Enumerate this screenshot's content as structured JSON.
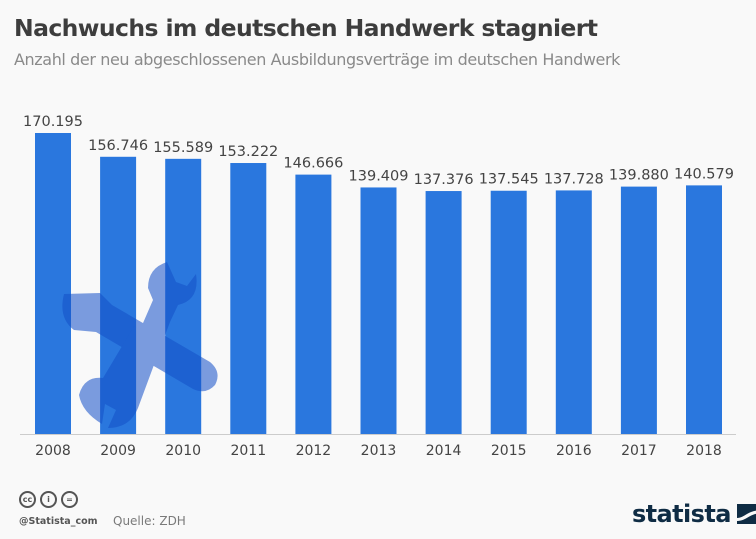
{
  "header": {
    "title": "Nachwuchs im deutschen Handwerk stagniert",
    "subtitle": "Anzahl der neu abgeschlossenen Ausbildungsverträge im deutschen Handwerk"
  },
  "chart_data": {
    "type": "bar",
    "title": "Nachwuchs im deutschen Handwerk stagniert",
    "subtitle": "Anzahl der neu abgeschlossenen Ausbildungsverträge im deutschen Handwerk",
    "xlabel": "",
    "ylabel": "",
    "categories": [
      "2008",
      "2009",
      "2010",
      "2011",
      "2012",
      "2013",
      "2014",
      "2015",
      "2016",
      "2017",
      "2018"
    ],
    "values": [
      170195,
      156746,
      155589,
      153222,
      146666,
      139409,
      137376,
      137545,
      137728,
      139880,
      140579
    ],
    "value_labels": [
      "170.195",
      "156.746",
      "155.589",
      "153.222",
      "146.666",
      "139.409",
      "137.376",
      "137.545",
      "137.728",
      "139.880",
      "140.579"
    ],
    "ylim": [
      0,
      170195
    ],
    "grid": false,
    "legend": "none",
    "colors": {
      "bar": "#2a77de",
      "illustration": "#1350c8",
      "axis": "#cccccc",
      "label": "#444444"
    },
    "illustration": "wrench-and-screwdriver-icon"
  },
  "footer": {
    "license_icons": [
      "cc-icon",
      "attribution-icon",
      "no-derivatives-icon"
    ],
    "handle": "@Statista_com",
    "source": "Quelle: ZDH",
    "logo": "statista"
  }
}
